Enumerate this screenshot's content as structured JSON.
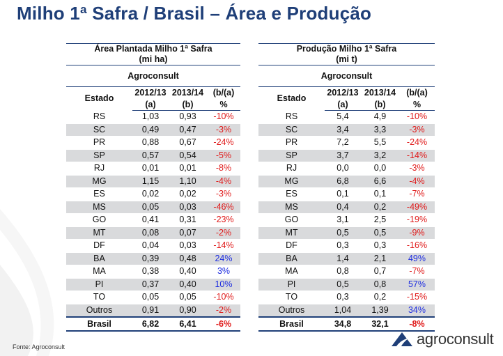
{
  "title": "Milho 1ª Safra / Brasil – Área e Produção",
  "left": {
    "title_line1": "Área Plantada Milho 1ª Safra",
    "title_line2": "(mi ha)",
    "source": "Agroconsult",
    "col_estado": "Estado",
    "col1": "2012/13",
    "col1_sub": "(a)",
    "col2": "2013/14",
    "col2_sub": "(b)",
    "col3": "(b/(a)",
    "col3_sub": "%"
  },
  "right": {
    "title_line1": "Produção Milho 1ª Safra",
    "title_line2": "(mi t)",
    "source": "Agroconsult",
    "col_estado": "Estado",
    "col1": "2012/13",
    "col1_sub": "(a)",
    "col2": "2013/14",
    "col2_sub": "(b)",
    "col3": "(b/(a)",
    "col3_sub": "%"
  },
  "area_rows": [
    [
      "RS",
      "1,03",
      "0,93",
      "-10%"
    ],
    [
      "SC",
      "0,49",
      "0,47",
      "-3%"
    ],
    [
      "PR",
      "0,88",
      "0,67",
      "-24%"
    ],
    [
      "SP",
      "0,57",
      "0,54",
      "-5%"
    ],
    [
      "RJ",
      "0,01",
      "0,01",
      "-8%"
    ],
    [
      "MG",
      "1,15",
      "1,10",
      "-4%"
    ],
    [
      "ES",
      "0,02",
      "0,02",
      "-3%"
    ],
    [
      "MS",
      "0,05",
      "0,03",
      "-46%"
    ],
    [
      "GO",
      "0,41",
      "0,31",
      "-23%"
    ],
    [
      "MT",
      "0,08",
      "0,07",
      "-2%"
    ],
    [
      "DF",
      "0,04",
      "0,03",
      "-14%"
    ],
    [
      "BA",
      "0,39",
      "0,48",
      "24%"
    ],
    [
      "MA",
      "0,38",
      "0,40",
      "3%"
    ],
    [
      "PI",
      "0,37",
      "0,40",
      "10%"
    ],
    [
      "TO",
      "0,05",
      "0,05",
      "-10%"
    ],
    [
      "Outros",
      "0,91",
      "0,90",
      "-2%"
    ]
  ],
  "area_total": [
    "Brasil",
    "6,82",
    "6,41",
    "-6%"
  ],
  "prod_rows": [
    [
      "RS",
      "5,4",
      "4,9",
      "-10%"
    ],
    [
      "SC",
      "3,4",
      "3,3",
      "-3%"
    ],
    [
      "PR",
      "7,2",
      "5,5",
      "-24%"
    ],
    [
      "SP",
      "3,7",
      "3,2",
      "-14%"
    ],
    [
      "RJ",
      "0,0",
      "0,0",
      "-3%"
    ],
    [
      "MG",
      "6,8",
      "6,6",
      "-4%"
    ],
    [
      "ES",
      "0,1",
      "0,1",
      "-7%"
    ],
    [
      "MS",
      "0,4",
      "0,2",
      "-49%"
    ],
    [
      "GO",
      "3,1",
      "2,5",
      "-19%"
    ],
    [
      "MT",
      "0,5",
      "0,5",
      "-9%"
    ],
    [
      "DF",
      "0,3",
      "0,3",
      "-16%"
    ],
    [
      "BA",
      "1,4",
      "2,1",
      "49%"
    ],
    [
      "MA",
      "0,8",
      "0,7",
      "-7%"
    ],
    [
      "PI",
      "0,5",
      "0,8",
      "57%"
    ],
    [
      "TO",
      "0,3",
      "0,2",
      "-15%"
    ],
    [
      "Outros",
      "1,04",
      "1,39",
      "34%"
    ]
  ],
  "prod_total": [
    "Brasil",
    "34,8",
    "32,1",
    "-8%"
  ],
  "footer": {
    "source": "Fonte: Agroconsult"
  },
  "logo": {
    "text": "agroconsult",
    "icon": "agroconsult-logo-icon"
  },
  "colors": {
    "title": "#1f3f78",
    "negative": "#e01b1b",
    "positive": "#1f2ee0",
    "stripe": "#d9dadc"
  }
}
